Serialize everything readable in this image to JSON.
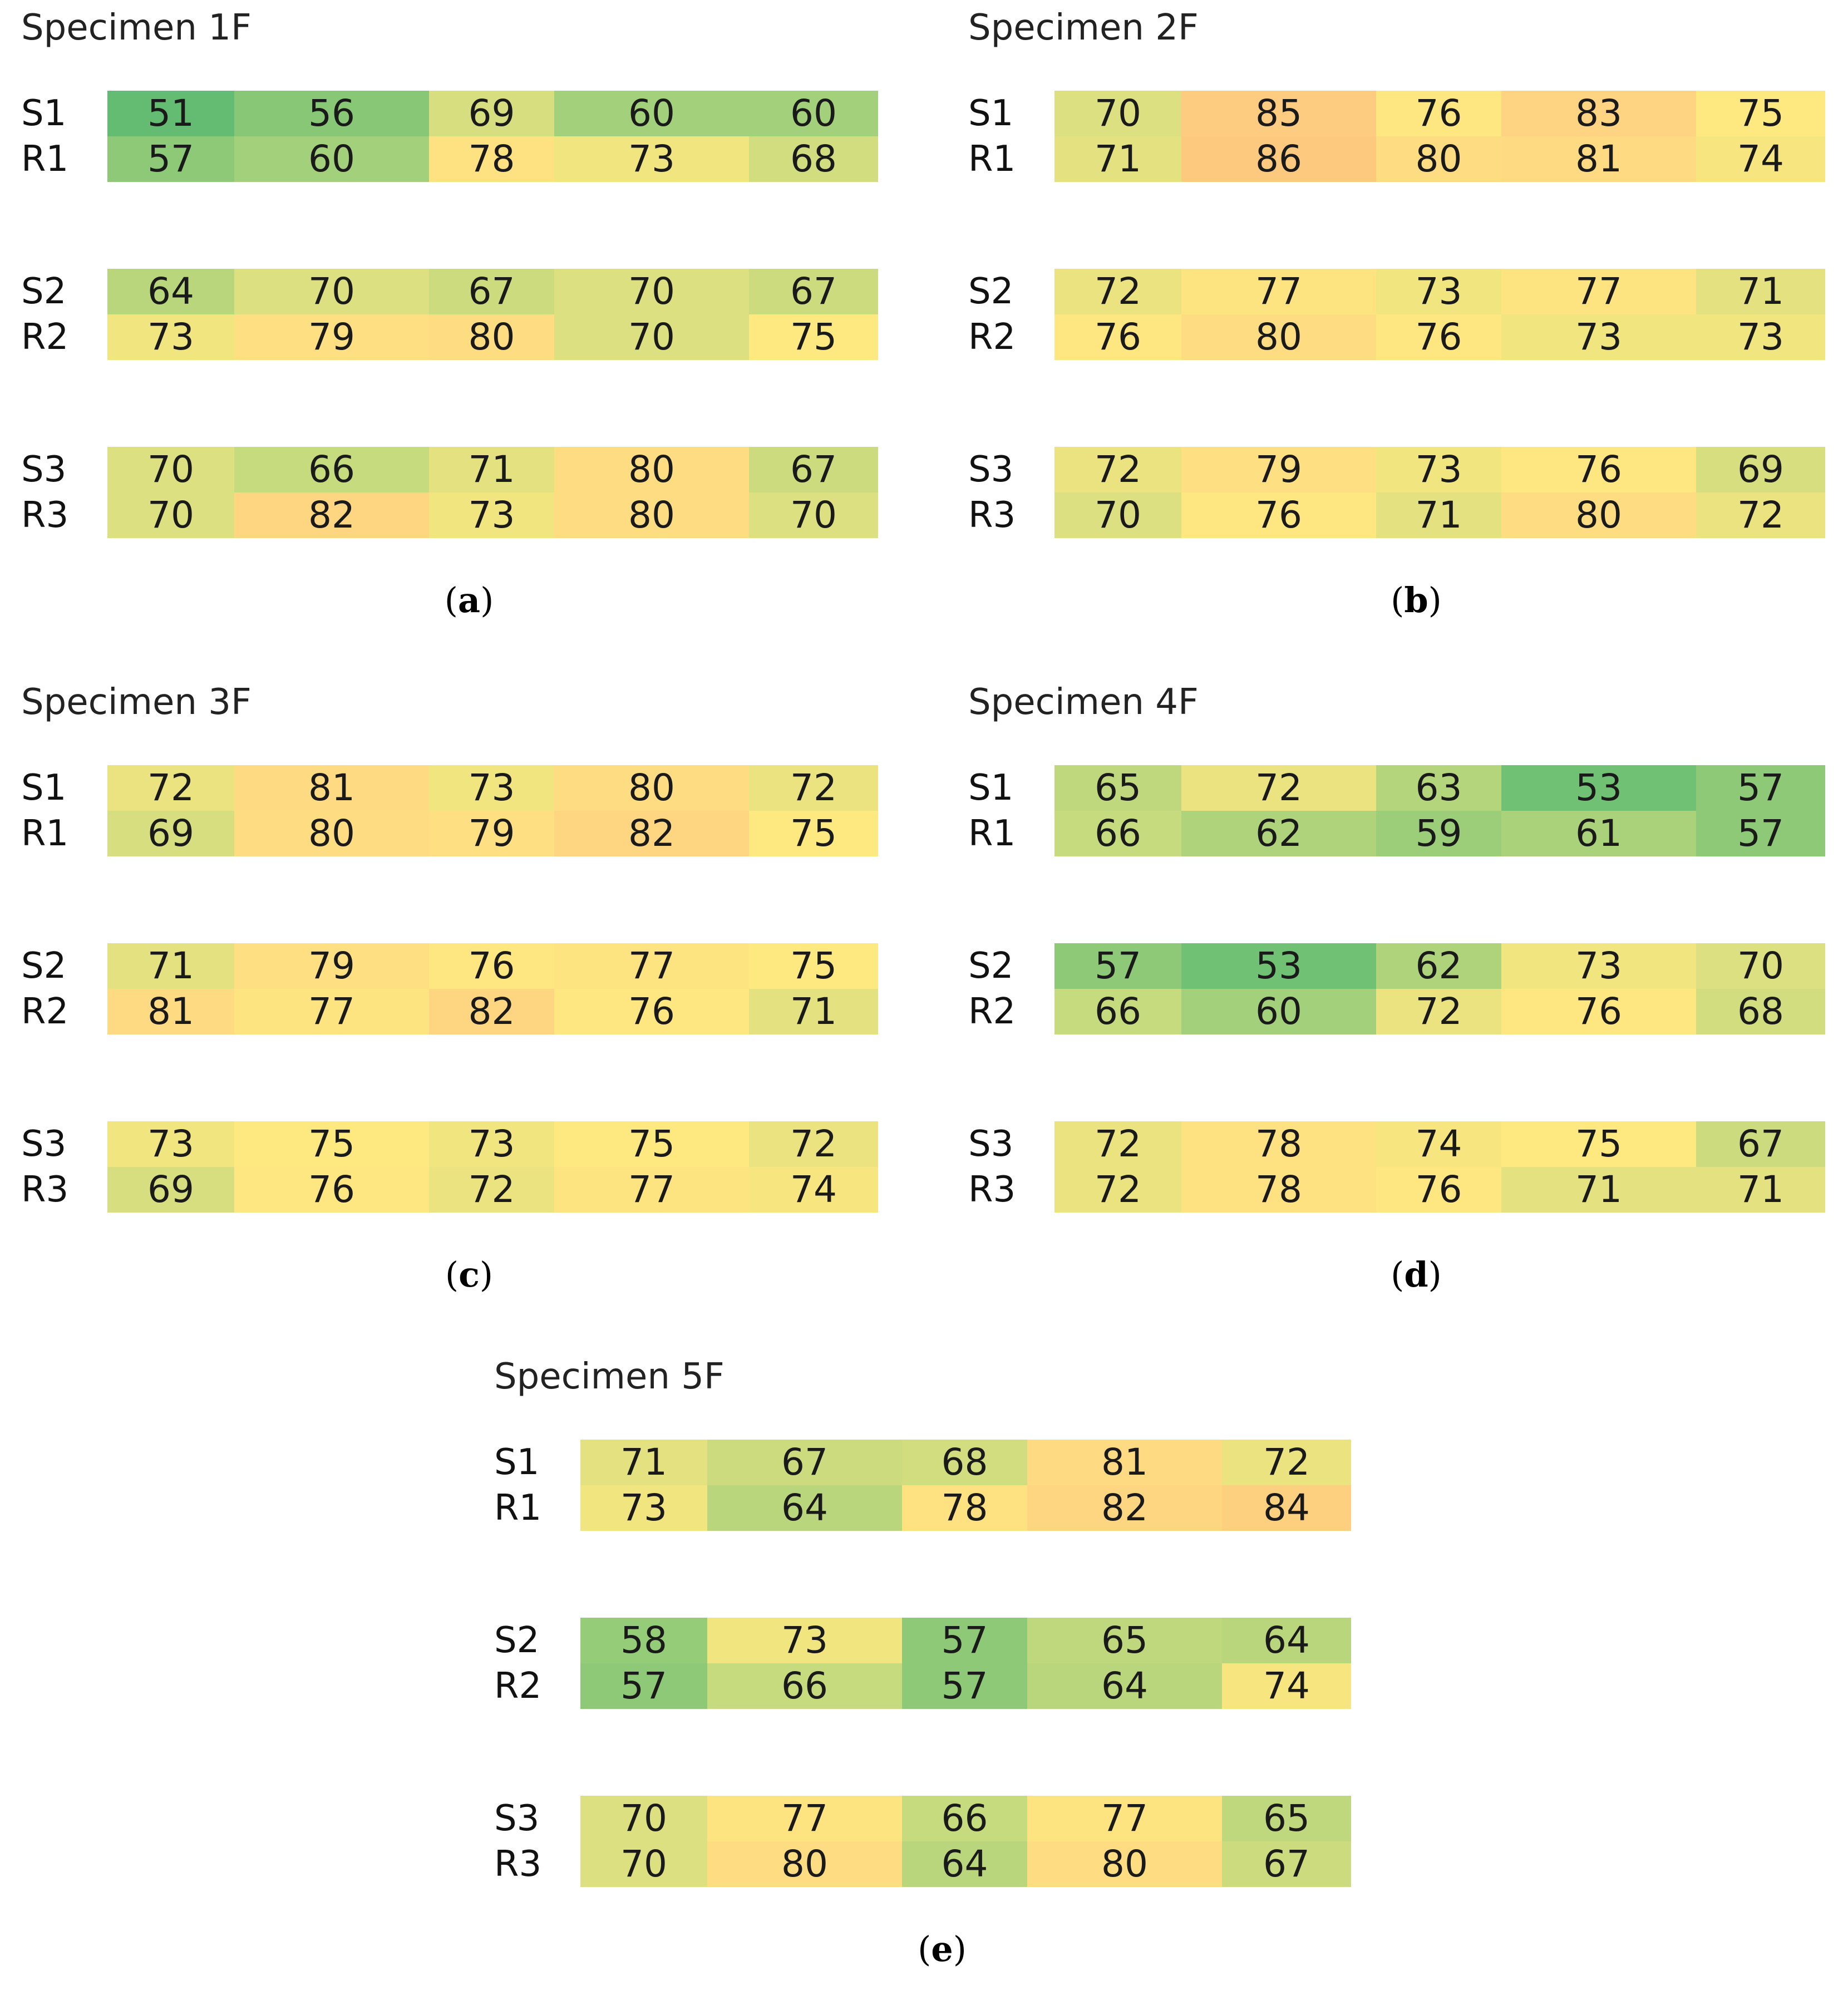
{
  "chart_data": [
    {
      "type": "heatmap",
      "title": "Specimen 1F",
      "caption": "a",
      "groups": [
        {
          "labels": [
            "S1",
            "R1"
          ],
          "values": [
            [
              51,
              56,
              69,
              60,
              60
            ],
            [
              57,
              60,
              78,
              73,
              68
            ]
          ]
        },
        {
          "labels": [
            "S2",
            "R2"
          ],
          "values": [
            [
              64,
              70,
              67,
              70,
              67
            ],
            [
              73,
              79,
              80,
              70,
              75
            ]
          ]
        },
        {
          "labels": [
            "S3",
            "R3"
          ],
          "values": [
            [
              70,
              66,
              71,
              80,
              67
            ],
            [
              70,
              82,
              73,
              80,
              70
            ]
          ]
        }
      ]
    },
    {
      "type": "heatmap",
      "title": "Specimen 2F",
      "caption": "b",
      "groups": [
        {
          "labels": [
            "S1",
            "R1"
          ],
          "values": [
            [
              70,
              85,
              76,
              83,
              75
            ],
            [
              71,
              86,
              80,
              81,
              74
            ]
          ]
        },
        {
          "labels": [
            "S2",
            "R2"
          ],
          "values": [
            [
              72,
              77,
              73,
              77,
              71
            ],
            [
              76,
              80,
              76,
              73,
              73
            ]
          ]
        },
        {
          "labels": [
            "S3",
            "R3"
          ],
          "values": [
            [
              72,
              79,
              73,
              76,
              69
            ],
            [
              70,
              76,
              71,
              80,
              72
            ]
          ]
        }
      ]
    },
    {
      "type": "heatmap",
      "title": "Specimen 3F",
      "caption": "c",
      "groups": [
        {
          "labels": [
            "S1",
            "R1"
          ],
          "values": [
            [
              72,
              81,
              73,
              80,
              72
            ],
            [
              69,
              80,
              79,
              82,
              75
            ]
          ]
        },
        {
          "labels": [
            "S2",
            "R2"
          ],
          "values": [
            [
              71,
              79,
              76,
              77,
              75
            ],
            [
              81,
              77,
              82,
              76,
              71
            ]
          ]
        },
        {
          "labels": [
            "S3",
            "R3"
          ],
          "values": [
            [
              73,
              75,
              73,
              75,
              72
            ],
            [
              69,
              76,
              72,
              77,
              74
            ]
          ]
        }
      ]
    },
    {
      "type": "heatmap",
      "title": "Specimen 4F",
      "caption": "d",
      "groups": [
        {
          "labels": [
            "S1",
            "R1"
          ],
          "values": [
            [
              65,
              72,
              63,
              53,
              57
            ],
            [
              66,
              62,
              59,
              61,
              57
            ]
          ]
        },
        {
          "labels": [
            "S2",
            "R2"
          ],
          "values": [
            [
              57,
              53,
              62,
              73,
              70
            ],
            [
              66,
              60,
              72,
              76,
              68
            ]
          ]
        },
        {
          "labels": [
            "S3",
            "R3"
          ],
          "values": [
            [
              72,
              78,
              74,
              75,
              67
            ],
            [
              72,
              78,
              76,
              71,
              71
            ]
          ]
        }
      ]
    },
    {
      "type": "heatmap",
      "title": "Specimen 5F",
      "caption": "e",
      "groups": [
        {
          "labels": [
            "S1",
            "R1"
          ],
          "values": [
            [
              71,
              67,
              68,
              81,
              72
            ],
            [
              73,
              64,
              78,
              82,
              84
            ]
          ]
        },
        {
          "labels": [
            "S2",
            "R2"
          ],
          "values": [
            [
              58,
              73,
              57,
              65,
              64
            ],
            [
              57,
              66,
              57,
              64,
              74
            ]
          ]
        },
        {
          "labels": [
            "S3",
            "R3"
          ],
          "values": [
            [
              70,
              77,
              66,
              77,
              65
            ],
            [
              70,
              80,
              64,
              80,
              67
            ]
          ]
        }
      ]
    }
  ],
  "color_scale": {
    "stops": [
      {
        "value": 50,
        "color": "#5cba71"
      },
      {
        "value": 60,
        "color": "#a3d07a"
      },
      {
        "value": 70,
        "color": "#dde080"
      },
      {
        "value": 75,
        "color": "#fee880"
      },
      {
        "value": 80,
        "color": "#fedd82"
      },
      {
        "value": 86,
        "color": "#fdc97f"
      }
    ]
  }
}
